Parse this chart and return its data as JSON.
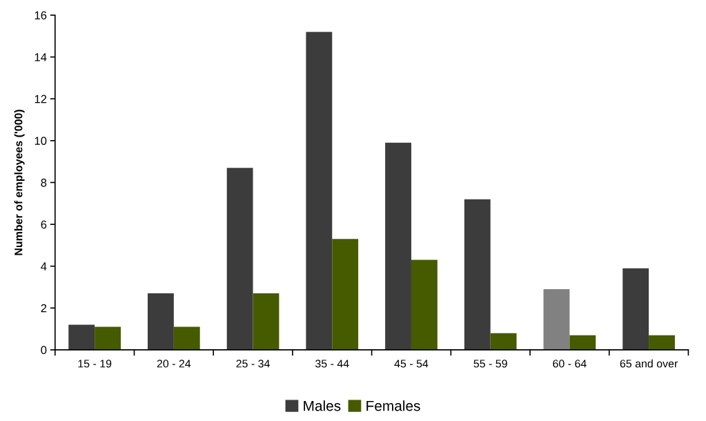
{
  "chart_data": {
    "type": "bar",
    "ylabel": "Number of employees ('000)",
    "categories": [
      "15 - 19",
      "20 - 24",
      "25 - 34",
      "35 - 44",
      "45 - 54",
      "55 - 59",
      "60 - 64",
      "65 and over"
    ],
    "series": [
      {
        "name": "Males",
        "color": "#3c3c3c",
        "colors": [
          "#3c3c3c",
          "#3c3c3c",
          "#3c3c3c",
          "#3c3c3c",
          "#3c3c3c",
          "#3c3c3c",
          "#818181",
          "#3c3c3c"
        ],
        "values": [
          1.2,
          2.7,
          8.7,
          15.2,
          9.9,
          7.2,
          2.9,
          3.9
        ]
      },
      {
        "name": "Females",
        "color": "#465a00",
        "values": [
          1.1,
          1.1,
          2.7,
          5.3,
          4.3,
          0.8,
          0.7,
          0.7
        ]
      }
    ],
    "ylim": [
      0,
      16
    ],
    "yticks": [
      0,
      2,
      4,
      6,
      8,
      10,
      12,
      14,
      16
    ],
    "grid": false,
    "legend": "bottom"
  }
}
